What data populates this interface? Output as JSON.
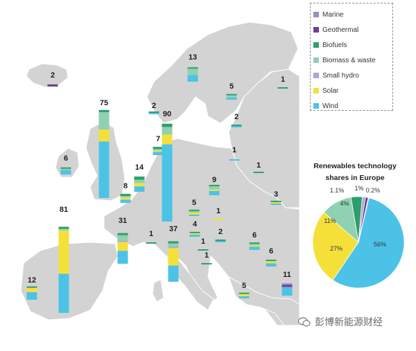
{
  "legend": {
    "items": [
      {
        "name": "Marine",
        "color": "#a08cc0"
      },
      {
        "name": "Geothermal",
        "color": "#6c3f98"
      },
      {
        "name": "Biofuels",
        "color": "#2f9e6e"
      },
      {
        "name": "Biomass & waste",
        "color": "#8fd1b0"
      },
      {
        "name": "Small hydro",
        "color": "#a9a9d6"
      },
      {
        "name": "Solar",
        "color": "#f5e03a"
      },
      {
        "name": "Wind",
        "color": "#4cc3e6"
      }
    ]
  },
  "pie": {
    "title_line1": "Renewables technology",
    "title_line2": "shares in Europe",
    "labels": [
      "56%",
      "27%",
      "11%",
      "4%",
      "1.1%",
      "1%",
      "0.2%"
    ]
  },
  "watermark": "彭博新能源财经",
  "chart_data": {
    "type": "bar",
    "description_series": [
      "Wind",
      "Solar",
      "Small hydro",
      "Biomass & waste",
      "Biofuels",
      "Geothermal",
      "Marine"
    ],
    "countries": [
      {
        "label": "2",
        "wind": 0,
        "solar": 0,
        "hydro": 0,
        "biomass": 0,
        "biofuels": 0,
        "geo": 2
      },
      {
        "label": "75",
        "wind": 52,
        "solar": 11,
        "hydro": 0,
        "biomass": 16,
        "biofuels": 2
      },
      {
        "label": "6",
        "wind": 4,
        "solar": 0,
        "hydro": 0,
        "biomass": 1,
        "biofuels": 1
      },
      {
        "label": "81",
        "wind": 36,
        "solar": 40,
        "hydro": 0,
        "biomass": 1,
        "biofuels": 2
      },
      {
        "label": "12",
        "wind": 7,
        "solar": 4,
        "hydro": 0,
        "biomass": 0,
        "biofuels": 1
      },
      {
        "label": "31",
        "wind": 12,
        "solar": 8,
        "hydro": 1,
        "biomass": 5,
        "biofuels": 2
      },
      {
        "label": "8",
        "wind": 3,
        "solar": 2,
        "hydro": 0,
        "biomass": 1,
        "biofuels": 2
      },
      {
        "label": "14",
        "wind": 5,
        "solar": 3,
        "hydro": 0,
        "biomass": 3,
        "biofuels": 3
      },
      {
        "label": "7",
        "wind": 3,
        "solar": 1,
        "hydro": 0,
        "biomass": 1,
        "biofuels": 2
      },
      {
        "label": "90",
        "wind": 71,
        "solar": 9,
        "hydro": 0,
        "biomass": 7,
        "biofuels": 3
      },
      {
        "label": "2",
        "wind": 1,
        "solar": 0,
        "hydro": 0,
        "biomass": 0,
        "biofuels": 1
      },
      {
        "label": "13",
        "wind": 6,
        "solar": 0,
        "hydro": 0,
        "biomass": 6,
        "biofuels": 1
      },
      {
        "label": "5",
        "wind": 2,
        "solar": 0,
        "hydro": 0,
        "biomass": 2,
        "biofuels": 1
      },
      {
        "label": "1",
        "wind": 0,
        "solar": 0,
        "hydro": 0,
        "biomass": 0,
        "biofuels": 1
      },
      {
        "label": "2",
        "wind": 1,
        "solar": 0,
        "hydro": 0,
        "biomass": 0,
        "biofuels": 1
      },
      {
        "label": "1",
        "wind": 1,
        "solar": 0,
        "hydro": 0,
        "biomass": 0,
        "biofuels": 0
      },
      {
        "label": "1",
        "wind": 0,
        "solar": 0,
        "hydro": 0,
        "biomass": 0,
        "biofuels": 1
      },
      {
        "label": "9",
        "wind": 4,
        "solar": 1,
        "hydro": 0,
        "biomass": 3,
        "biofuels": 1
      },
      {
        "label": "5",
        "wind": 1,
        "solar": 2,
        "hydro": 0,
        "biomass": 1,
        "biofuels": 1
      },
      {
        "label": "1",
        "wind": 0,
        "solar": 1,
        "hydro": 0,
        "biomass": 0,
        "biofuels": 0
      },
      {
        "label": "3",
        "wind": 1,
        "solar": 1,
        "hydro": 0,
        "biomass": 0,
        "biofuels": 1
      },
      {
        "label": "4",
        "wind": 2,
        "solar": 1,
        "hydro": 0,
        "biomass": 0,
        "biofuels": 1
      },
      {
        "label": "2",
        "wind": 1,
        "solar": 0,
        "hydro": 0,
        "biomass": 0,
        "biofuels": 1
      },
      {
        "label": "1",
        "wind": 0,
        "solar": 0,
        "hydro": 0,
        "biomass": 0,
        "biofuels": 1
      },
      {
        "label": "1",
        "wind": 0,
        "solar": 0,
        "hydro": 0,
        "biomass": 0,
        "biofuels": 1
      },
      {
        "label": "37",
        "wind": 15,
        "solar": 16,
        "hydro": 1,
        "biomass": 3,
        "biofuels": 2
      },
      {
        "label": "1",
        "wind": 0,
        "solar": 0,
        "hydro": 0,
        "biomass": 0,
        "biofuels": 1
      },
      {
        "label": "6",
        "wind": 3,
        "solar": 1,
        "hydro": 0,
        "biomass": 1,
        "biofuels": 1
      },
      {
        "label": "6",
        "wind": 3,
        "solar": 2,
        "hydro": 0,
        "biomass": 0,
        "biofuels": 1
      },
      {
        "label": "5",
        "wind": 2,
        "solar": 2,
        "hydro": 0,
        "biomass": 0,
        "biofuels": 1
      },
      {
        "label": "11",
        "wind": 8,
        "solar": 0,
        "hydro": 0,
        "biomass": 0,
        "biofuels": 0,
        "geo": 2,
        "marine": 1
      }
    ],
    "pie_shares": [
      {
        "name": "Wind",
        "value": 56
      },
      {
        "name": "Solar",
        "value": 27
      },
      {
        "name": "Biomass & waste",
        "value": 11
      },
      {
        "name": "Biofuels",
        "value": 4
      },
      {
        "name": "Small hydro",
        "value": 1.1
      },
      {
        "name": "Geothermal",
        "value": 1
      },
      {
        "name": "Marine",
        "value": 0.2
      }
    ]
  }
}
